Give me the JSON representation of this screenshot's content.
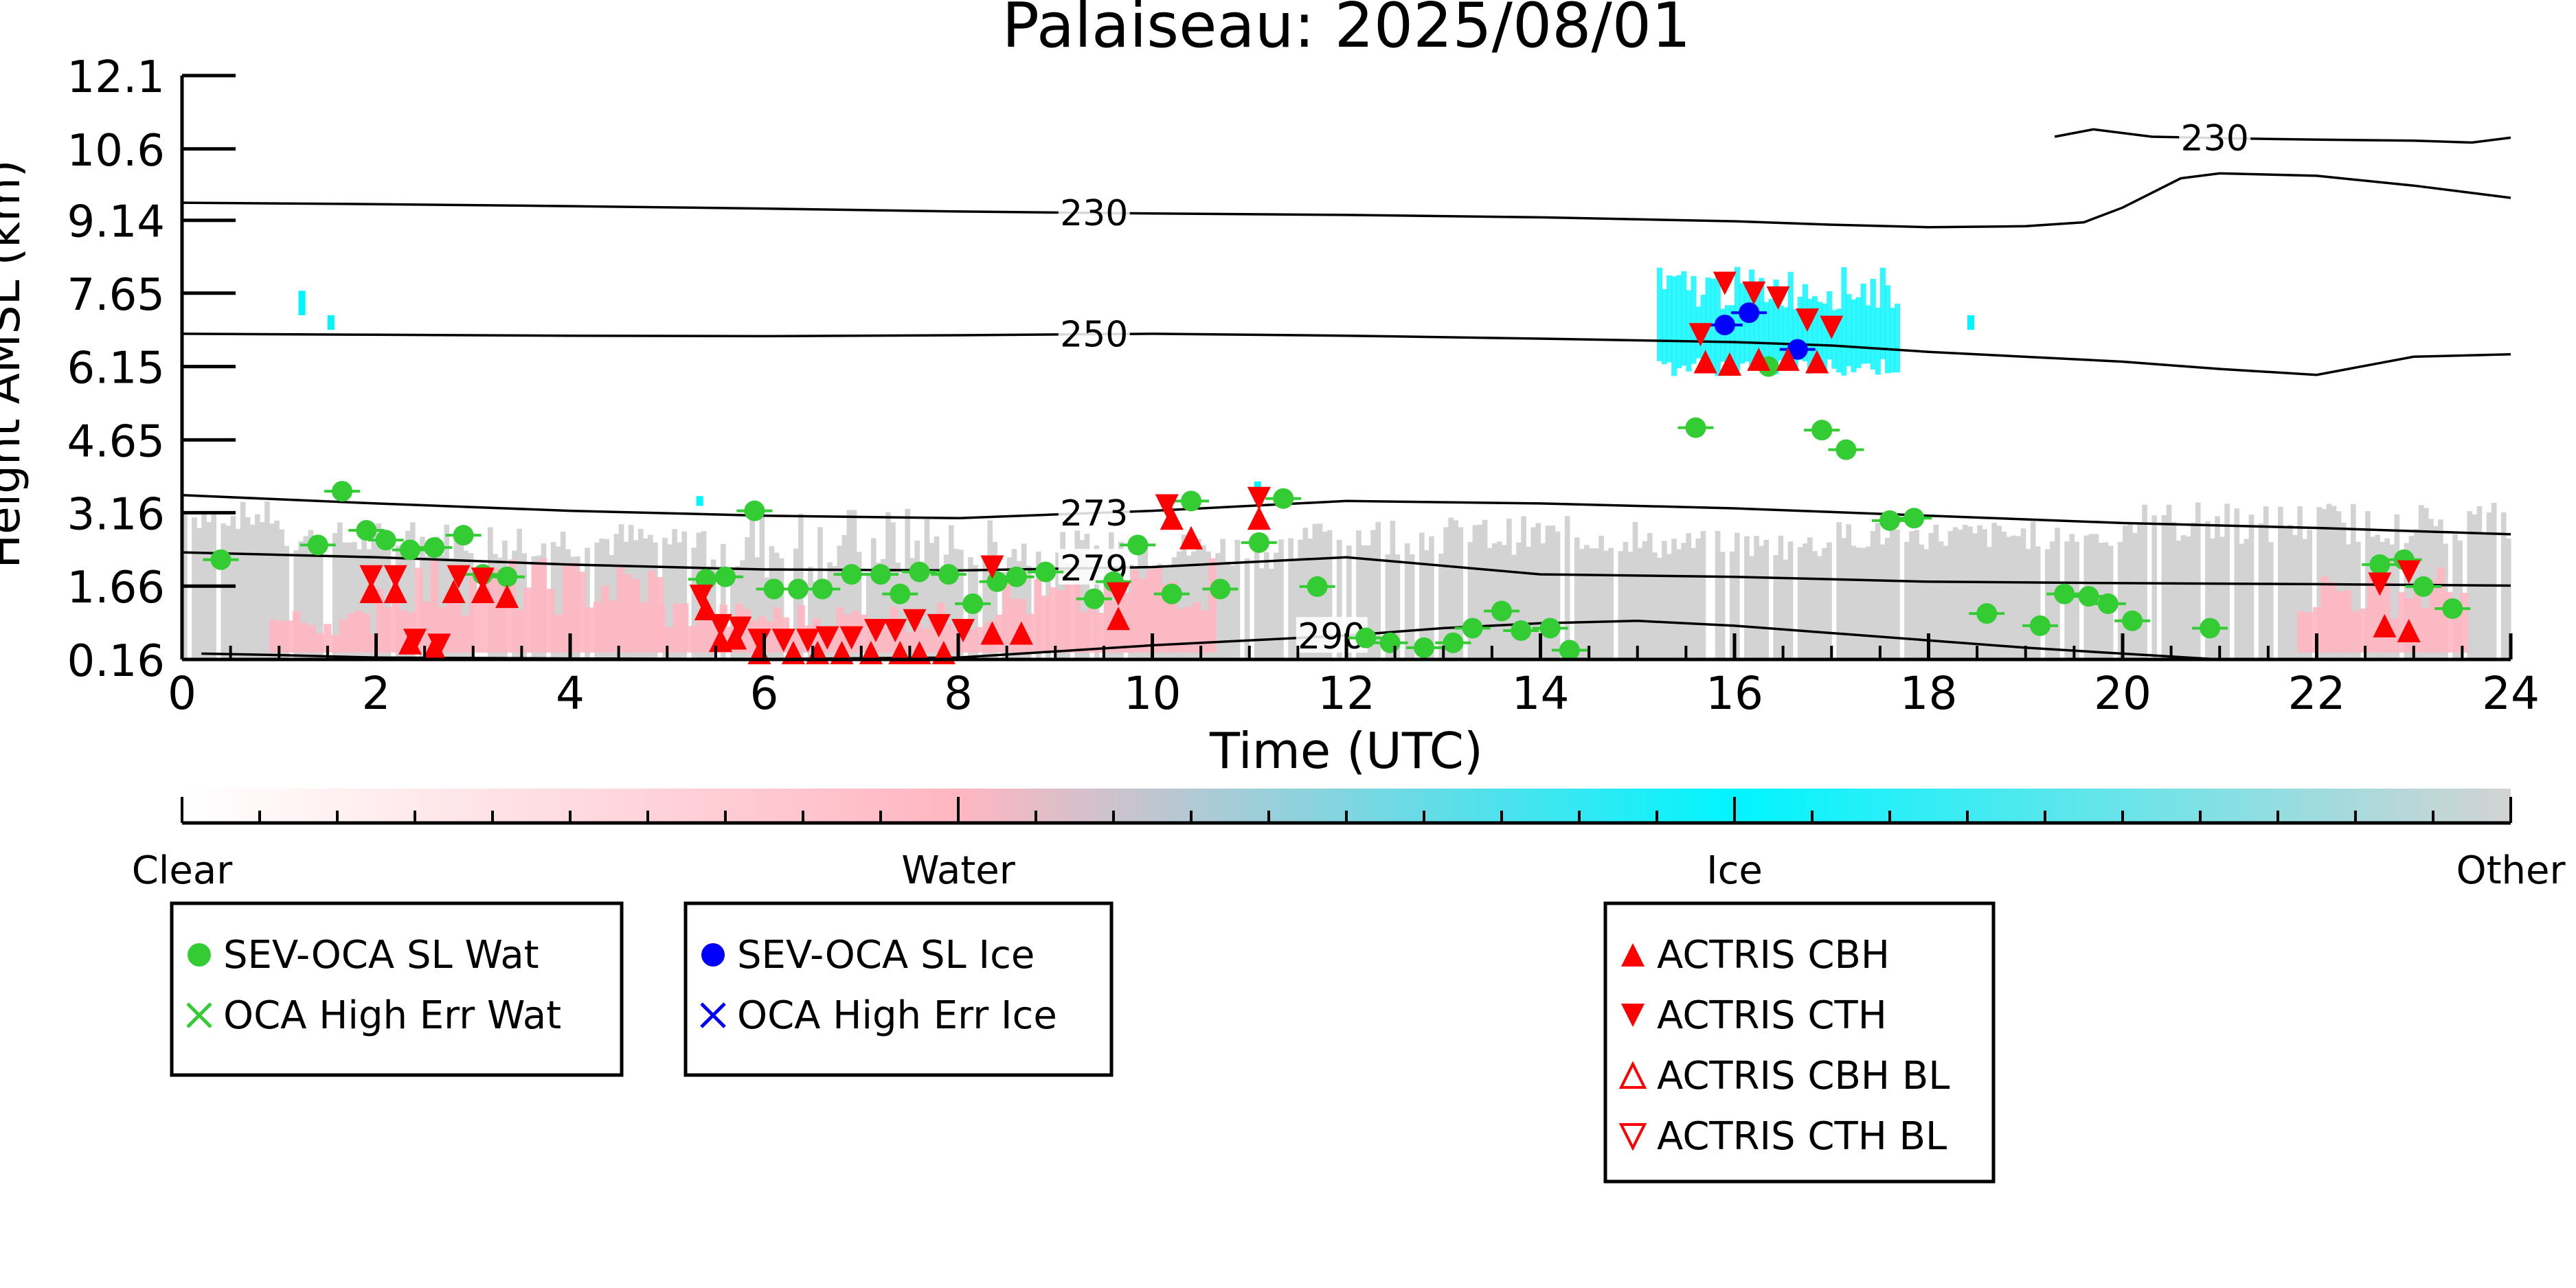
{
  "chart_data": {
    "type": "scatter",
    "title": "Palaiseau: 2025/08/01",
    "xlabel": "Time (UTC)",
    "ylabel": "Height AMSL (km)",
    "xlim": [
      0,
      24
    ],
    "ylim": [
      0.16,
      12.1
    ],
    "xticks": [
      "0",
      "2",
      "4",
      "6",
      "8",
      "10",
      "12",
      "14",
      "16",
      "18",
      "20",
      "22",
      "24"
    ],
    "yticks": [
      "0.16",
      "1.66",
      "3.16",
      "4.65",
      "6.15",
      "7.65",
      "9.14",
      "10.6",
      "12.1"
    ],
    "grid": false,
    "colorbar": {
      "labels": [
        "Clear",
        "Water",
        "Ice",
        "Other"
      ],
      "colors": [
        "#ffffff",
        "#ffb6c1",
        "#00f5ff",
        "#d3d3d3"
      ]
    },
    "contours": [
      {
        "label": "230",
        "x": [
          0,
          2,
          4,
          6,
          8,
          10,
          12,
          14,
          16,
          17,
          18,
          19,
          19.6,
          20,
          20.6,
          21,
          22,
          23,
          24
        ],
        "y": [
          9.5,
          9.47,
          9.43,
          9.38,
          9.32,
          9.28,
          9.25,
          9.2,
          9.12,
          9.05,
          9.0,
          9.02,
          9.1,
          9.4,
          10.0,
          10.1,
          10.05,
          9.85,
          9.6
        ]
      },
      {
        "label": "230",
        "x": [
          19.3,
          19.7,
          20.3,
          21,
          22,
          23,
          23.6,
          24
        ],
        "y": [
          10.85,
          11.0,
          10.85,
          10.82,
          10.79,
          10.77,
          10.73,
          10.83
        ]
      },
      {
        "label": "250",
        "x": [
          0,
          2,
          4,
          6,
          8,
          10,
          12,
          14,
          16,
          17,
          18,
          20,
          21,
          22,
          23,
          24
        ],
        "y": [
          6.82,
          6.8,
          6.78,
          6.77,
          6.79,
          6.82,
          6.78,
          6.72,
          6.65,
          6.58,
          6.45,
          6.25,
          6.1,
          5.98,
          6.35,
          6.4
        ]
      },
      {
        "label": "273",
        "x": [
          0,
          2,
          4,
          6,
          8,
          10,
          12,
          14,
          16,
          18,
          20,
          22,
          24
        ],
        "y": [
          3.52,
          3.35,
          3.2,
          3.1,
          3.05,
          3.2,
          3.4,
          3.35,
          3.25,
          3.1,
          2.95,
          2.85,
          2.72
        ]
      },
      {
        "label": "279",
        "x": [
          0,
          2,
          4,
          6,
          8,
          10,
          12,
          14,
          16,
          18,
          20,
          22,
          24
        ],
        "y": [
          2.35,
          2.25,
          2.1,
          2.0,
          1.98,
          2.05,
          2.25,
          1.9,
          1.85,
          1.75,
          1.72,
          1.7,
          1.67
        ]
      },
      {
        "label": "290",
        "x": [
          0.2,
          1,
          2,
          4,
          6,
          8,
          10,
          11,
          12,
          13,
          14,
          15,
          16,
          17,
          18,
          19,
          20,
          21
        ],
        "y": [
          0.28,
          0.25,
          0.2,
          0.18,
          0.17,
          0.2,
          0.45,
          0.55,
          0.65,
          0.8,
          0.9,
          0.95,
          0.85,
          0.7,
          0.55,
          0.4,
          0.28,
          0.16
        ]
      }
    ],
    "series": [
      {
        "name": "SEV-OCA SL Wat",
        "color": "#33cc33",
        "marker": "circle",
        "points": [
          [
            0.4,
            2.2
          ],
          [
            1.4,
            2.5
          ],
          [
            1.65,
            3.6
          ],
          [
            1.9,
            2.8
          ],
          [
            2.1,
            2.6
          ],
          [
            2.35,
            2.4
          ],
          [
            2.6,
            2.45
          ],
          [
            2.9,
            2.7
          ],
          [
            3.1,
            1.9
          ],
          [
            3.35,
            1.85
          ],
          [
            5.4,
            1.8
          ],
          [
            5.6,
            1.85
          ],
          [
            5.9,
            3.2
          ],
          [
            6.1,
            1.6
          ],
          [
            6.35,
            1.6
          ],
          [
            6.6,
            1.6
          ],
          [
            6.9,
            1.9
          ],
          [
            7.2,
            1.9
          ],
          [
            7.4,
            1.5
          ],
          [
            7.6,
            1.95
          ],
          [
            7.9,
            1.9
          ],
          [
            8.15,
            1.3
          ],
          [
            8.4,
            1.75
          ],
          [
            8.6,
            1.85
          ],
          [
            8.9,
            1.95
          ],
          [
            9.4,
            1.4
          ],
          [
            9.6,
            1.75
          ],
          [
            9.85,
            2.5
          ],
          [
            10.2,
            1.5
          ],
          [
            10.4,
            3.4
          ],
          [
            10.7,
            1.6
          ],
          [
            11.1,
            2.55
          ],
          [
            11.35,
            3.45
          ],
          [
            11.7,
            1.65
          ],
          [
            12.2,
            0.6
          ],
          [
            12.45,
            0.5
          ],
          [
            12.8,
            0.4
          ],
          [
            13.1,
            0.5
          ],
          [
            13.3,
            0.8
          ],
          [
            13.6,
            1.15
          ],
          [
            13.8,
            0.75
          ],
          [
            14.1,
            0.8
          ],
          [
            14.3,
            0.35
          ],
          [
            15.6,
            4.9
          ],
          [
            16.35,
            6.15
          ],
          [
            16.9,
            4.85
          ],
          [
            17.15,
            4.45
          ],
          [
            17.6,
            3.0
          ],
          [
            17.85,
            3.05
          ],
          [
            18.6,
            1.1
          ],
          [
            19.15,
            0.85
          ],
          [
            19.4,
            1.5
          ],
          [
            19.65,
            1.45
          ],
          [
            19.85,
            1.3
          ],
          [
            20.1,
            0.95
          ],
          [
            20.9,
            0.8
          ],
          [
            22.65,
            2.1
          ],
          [
            22.9,
            2.2
          ],
          [
            23.1,
            1.65
          ],
          [
            23.4,
            1.2
          ]
        ]
      },
      {
        "name": "SEV-OCA SL Ice",
        "color": "#0000ff",
        "marker": "circle",
        "points": [
          [
            15.9,
            7.0
          ],
          [
            16.15,
            7.25
          ],
          [
            16.65,
            6.5
          ]
        ]
      },
      {
        "name": "ACTRIS CBH",
        "color": "#ff0000",
        "marker": "triangle-up",
        "points": [
          [
            1.95,
            1.55
          ],
          [
            2.2,
            1.55
          ],
          [
            2.35,
            0.5
          ],
          [
            2.6,
            0.4
          ],
          [
            2.8,
            1.55
          ],
          [
            3.1,
            1.55
          ],
          [
            3.35,
            1.45
          ],
          [
            5.4,
            1.2
          ],
          [
            5.55,
            0.55
          ],
          [
            5.7,
            0.6
          ],
          [
            5.95,
            0.3
          ],
          [
            6.3,
            0.3
          ],
          [
            6.55,
            0.3
          ],
          [
            6.8,
            0.3
          ],
          [
            7.1,
            0.3
          ],
          [
            7.4,
            0.3
          ],
          [
            7.6,
            0.3
          ],
          [
            7.85,
            0.3
          ],
          [
            8.35,
            0.7
          ],
          [
            8.65,
            0.7
          ],
          [
            9.65,
            1.0
          ],
          [
            10.2,
            3.05
          ],
          [
            10.4,
            2.65
          ],
          [
            11.1,
            3.05
          ],
          [
            15.7,
            6.25
          ],
          [
            15.95,
            6.2
          ],
          [
            16.25,
            6.3
          ],
          [
            16.55,
            6.3
          ],
          [
            16.85,
            6.25
          ],
          [
            22.7,
            0.85
          ],
          [
            22.95,
            0.75
          ]
        ]
      },
      {
        "name": "ACTRIS CTH",
        "color": "#ff0000",
        "marker": "triangle-down",
        "points": [
          [
            1.95,
            1.85
          ],
          [
            2.2,
            1.85
          ],
          [
            2.4,
            0.55
          ],
          [
            2.65,
            0.45
          ],
          [
            2.85,
            1.85
          ],
          [
            3.1,
            1.8
          ],
          [
            5.35,
            1.45
          ],
          [
            5.55,
            0.85
          ],
          [
            5.75,
            0.8
          ],
          [
            5.95,
            0.55
          ],
          [
            6.2,
            0.55
          ],
          [
            6.45,
            0.55
          ],
          [
            6.65,
            0.6
          ],
          [
            6.9,
            0.6
          ],
          [
            7.15,
            0.75
          ],
          [
            7.35,
            0.75
          ],
          [
            7.55,
            0.95
          ],
          [
            7.8,
            0.85
          ],
          [
            8.05,
            0.75
          ],
          [
            8.35,
            2.05
          ],
          [
            9.65,
            1.5
          ],
          [
            10.15,
            3.3
          ],
          [
            11.1,
            3.45
          ],
          [
            15.65,
            6.8
          ],
          [
            15.9,
            7.85
          ],
          [
            16.2,
            7.65
          ],
          [
            16.45,
            7.55
          ],
          [
            16.75,
            7.1
          ],
          [
            17.0,
            6.95
          ],
          [
            22.65,
            1.7
          ],
          [
            22.95,
            1.95
          ]
        ]
      }
    ],
    "legend_groups": [
      {
        "entries": [
          "SEV-OCA SL Wat",
          "OCA High Err Wat"
        ]
      },
      {
        "entries": [
          "SEV-OCA SL Ice",
          "OCA High Err Ice"
        ]
      },
      {
        "entries": [
          "ACTRIS CBH",
          "ACTRIS CTH",
          "ACTRIS CBH BL",
          "ACTRIS CTH BL"
        ]
      }
    ],
    "legend_colors": {
      "SEV-OCA SL Wat": "#33cc33",
      "OCA High Err Wat": "#33cc33",
      "SEV-OCA SL Ice": "#0000ff",
      "OCA High Err Ice": "#0000ff",
      "ACTRIS CBH": "#ff0000",
      "ACTRIS CTH": "#ff0000",
      "ACTRIS CBH BL": "#ff0000",
      "ACTRIS CTH BL": "#ff0000"
    },
    "legend_markers": {
      "SEV-OCA SL Wat": "circle",
      "OCA High Err Wat": "x",
      "SEV-OCA SL Ice": "circle",
      "OCA High Err Ice": "x",
      "ACTRIS CBH": "triangle-up",
      "ACTRIS CTH": "triangle-down",
      "ACTRIS CBH BL": "triangle-up-open",
      "ACTRIS CTH BL": "triangle-down-open"
    }
  }
}
